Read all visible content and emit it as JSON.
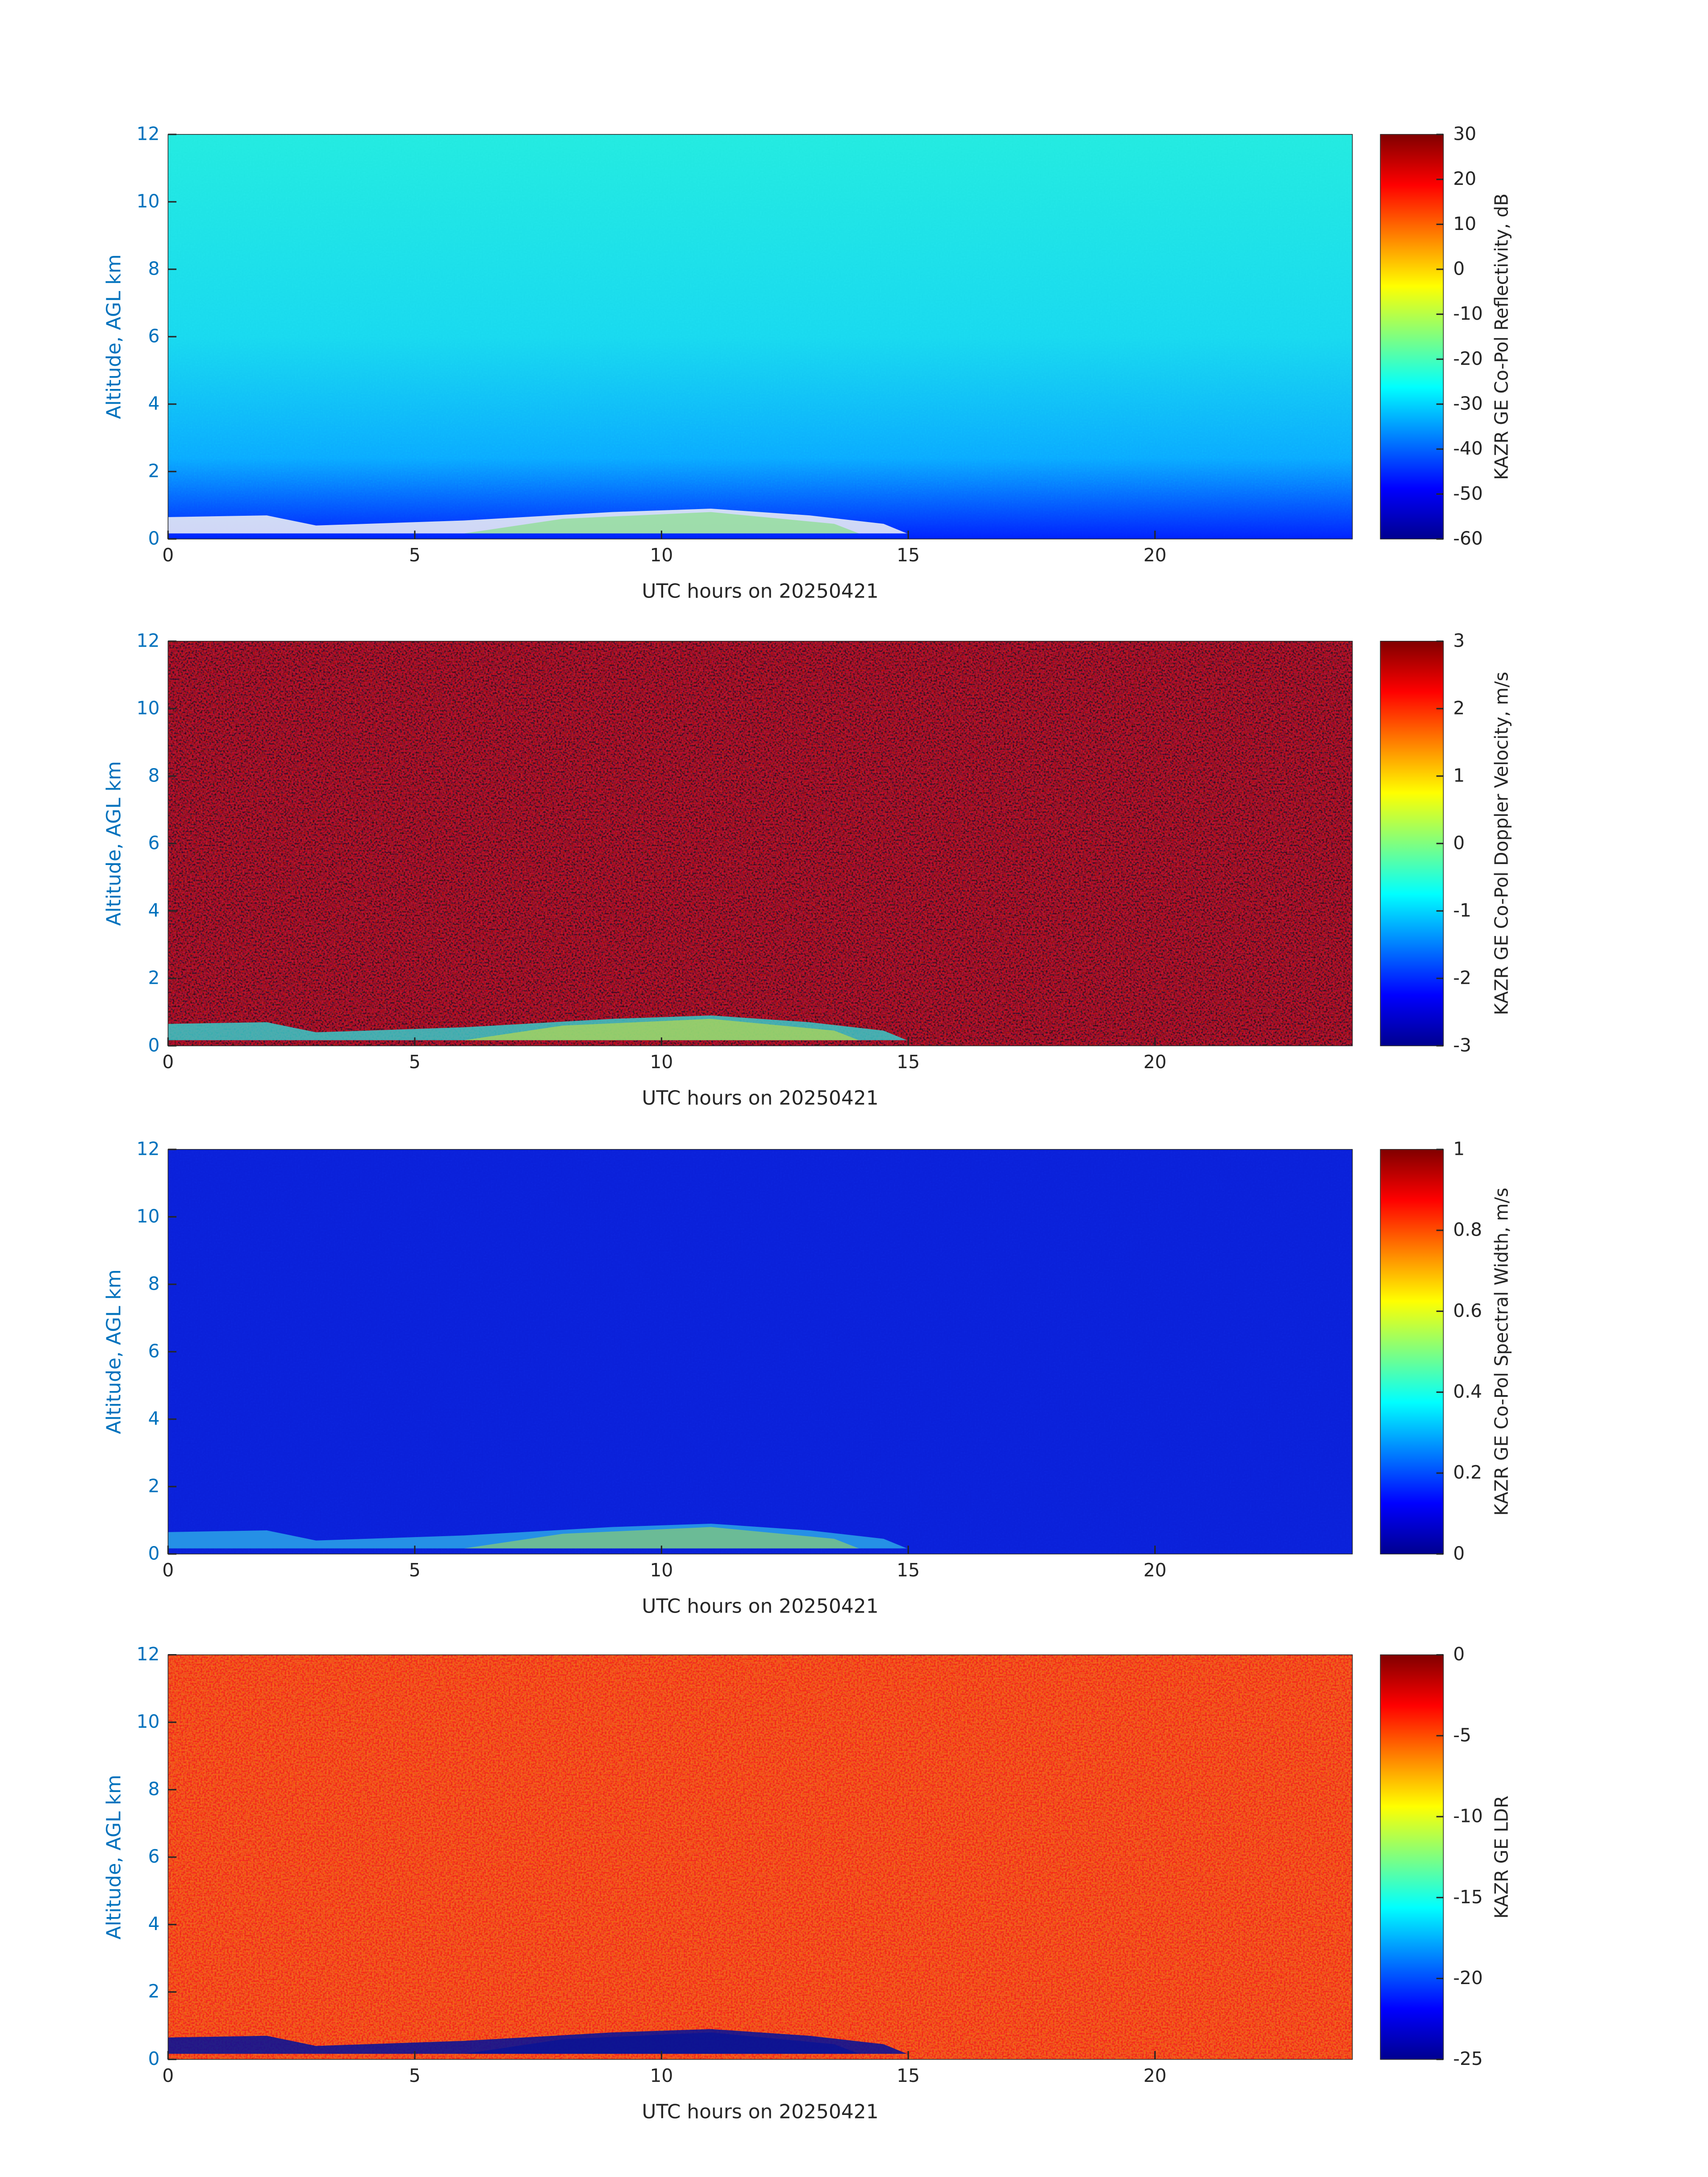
{
  "chart_data": [
    {
      "type": "heatmap",
      "xlabel": "UTC hours on 20250421",
      "ylabel": "Altitude, AGL km",
      "xlim": [
        0,
        24
      ],
      "xticks": [
        0,
        5,
        10,
        15,
        20
      ],
      "ylim": [
        0,
        12
      ],
      "yticks": [
        0,
        2,
        4,
        6,
        8,
        10,
        12
      ],
      "colormap": "jet",
      "colorbar": {
        "label": "KAZR GE Co-Pol Reflectivity, dB",
        "lim": [
          -60,
          30
        ],
        "ticks": [
          -60,
          -50,
          -40,
          -30,
          -20,
          -10,
          0,
          10,
          20,
          30
        ]
      }
    },
    {
      "type": "heatmap",
      "xlabel": "UTC hours on 20250421",
      "ylabel": "Altitude, AGL km",
      "xlim": [
        0,
        24
      ],
      "xticks": [
        0,
        5,
        10,
        15,
        20
      ],
      "ylim": [
        0,
        12
      ],
      "yticks": [
        0,
        2,
        4,
        6,
        8,
        10,
        12
      ],
      "colormap": "jet",
      "colorbar": {
        "label": "KAZR GE Co-Pol Doppler Velocity, m/s",
        "lim": [
          -3,
          3
        ],
        "ticks": [
          -3,
          -2,
          -1,
          0,
          1,
          2,
          3
        ]
      }
    },
    {
      "type": "heatmap",
      "xlabel": "UTC hours on 20250421",
      "ylabel": "Altitude, AGL km",
      "xlim": [
        0,
        24
      ],
      "xticks": [
        0,
        5,
        10,
        15,
        20
      ],
      "ylim": [
        0,
        12
      ],
      "yticks": [
        0,
        2,
        4,
        6,
        8,
        10,
        12
      ],
      "colormap": "jet",
      "colorbar": {
        "label": "KAZR GE Co-Pol Spectral Width, m/s",
        "lim": [
          0,
          1
        ],
        "ticks": [
          0,
          0.2,
          0.4,
          0.6,
          0.8,
          1
        ]
      }
    },
    {
      "type": "heatmap",
      "xlabel": "UTC hours on 20250421",
      "ylabel": "Altitude, AGL km",
      "xlim": [
        0,
        24
      ],
      "xticks": [
        0,
        5,
        10,
        15,
        20
      ],
      "ylim": [
        0,
        12
      ],
      "yticks": [
        0,
        2,
        4,
        6,
        8,
        10,
        12
      ],
      "colormap": "jet",
      "colorbar": {
        "label": "KAZR GE LDR",
        "lim": [
          -25,
          0
        ],
        "ticks": [
          -25,
          -20,
          -15,
          -10,
          -5,
          0
        ]
      }
    }
  ]
}
